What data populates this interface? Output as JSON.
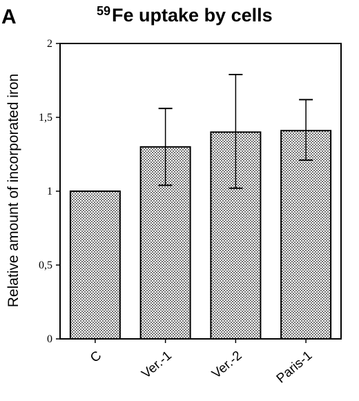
{
  "panel_label": "A",
  "chart_data": {
    "type": "bar",
    "title_superscript": "59",
    "title": "Fe uptake by cells",
    "ylabel": "Relative amount of incorporated iron",
    "xlabel": "",
    "categories": [
      "C",
      "Ver.-1",
      "Ver.-2",
      "Paris-1"
    ],
    "values": [
      1.0,
      1.3,
      1.4,
      1.41
    ],
    "error_upper": [
      null,
      1.56,
      1.79,
      1.62
    ],
    "error_lower": [
      null,
      1.04,
      1.02,
      1.21
    ],
    "ylim": [
      0,
      2
    ],
    "yticks": [
      0,
      0.5,
      1,
      1.5,
      2
    ],
    "ytick_labels": [
      "0",
      "0,5",
      "1",
      "1,5",
      "2"
    ],
    "bar_pattern": "stippled",
    "grid": false
  }
}
